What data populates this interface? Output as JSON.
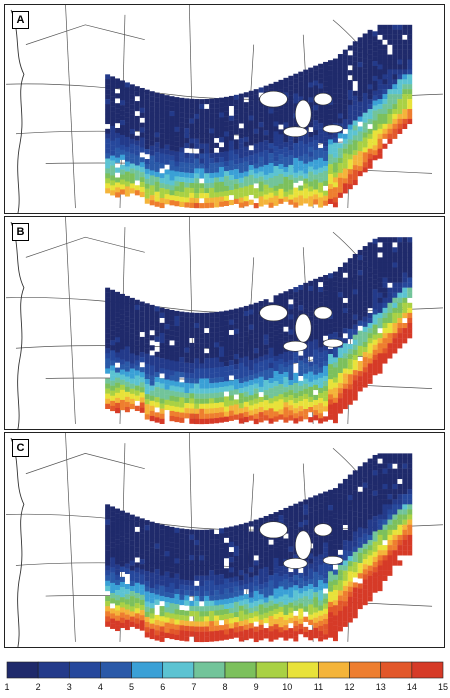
{
  "panels": [
    {
      "label": "A",
      "intensity": 0.85
    },
    {
      "label": "B",
      "intensity": 1.0
    },
    {
      "label": "C",
      "intensity": 1.15
    }
  ],
  "legend": {
    "ticks": [
      "1",
      "2",
      "3",
      "4",
      "5",
      "6",
      "7",
      "8",
      "9",
      "10",
      "11",
      "12",
      "13",
      "14",
      "15"
    ],
    "colors": [
      "#1f2a6b",
      "#233a8a",
      "#26489c",
      "#2a59a8",
      "#3aa0d6",
      "#5cc3d2",
      "#72c49a",
      "#7cc05c",
      "#a9d144",
      "#e8e23a",
      "#f4b43a",
      "#ee7e2f",
      "#e2572a",
      "#d63a27"
    ]
  }
}
